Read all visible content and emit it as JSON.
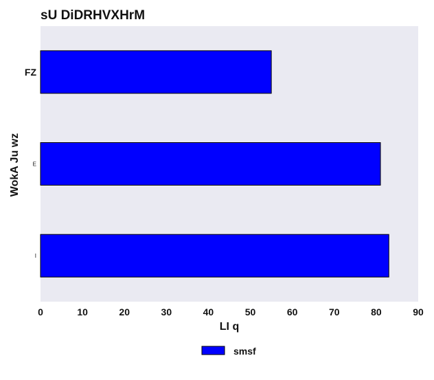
{
  "chart_data": {
    "type": "bar",
    "orientation": "horizontal",
    "title": "sU DiDRHVXHrM",
    "xlabel": "LI  q",
    "ylabel": "WokA Ju  wz",
    "categories": [
      "FZ",
      "E",
      "I"
    ],
    "category_label_sizes": [
      "large",
      "small",
      "small"
    ],
    "series": [
      {
        "name": "smsf",
        "values": [
          55,
          81,
          83
        ]
      }
    ],
    "xlim": [
      0,
      90
    ],
    "xticks": [
      0,
      10,
      20,
      30,
      40,
      50,
      60,
      70,
      80,
      90
    ],
    "grid": false,
    "legend": {
      "placement": "bottom-center"
    },
    "colors": {
      "bar": "#0000ff",
      "bar_edge": "#000000",
      "plot_background": "#eaeaf2",
      "text": "#111111"
    }
  }
}
